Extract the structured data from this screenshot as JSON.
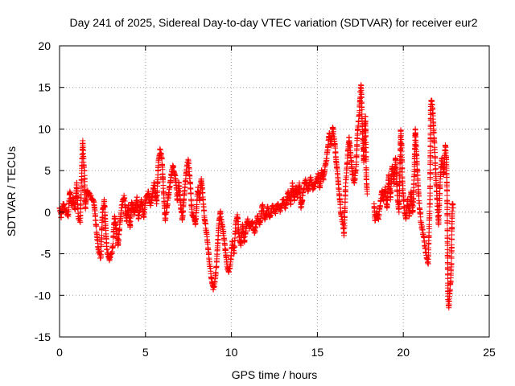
{
  "chart_data": {
    "type": "scatter",
    "title": "Day 241 of 2025, Sidereal Day-to-day VTEC variation (SDTVAR) for receiver eur2",
    "xlabel": "GPS time / hours",
    "ylabel": "SDTVAR / TECUs",
    "xlim": [
      0,
      25
    ],
    "ylim": [
      -15,
      20
    ],
    "x_ticks": [
      0,
      5,
      10,
      15,
      20,
      25
    ],
    "x_tick_labels": [
      "0",
      "5",
      "10",
      "15",
      "20",
      "25"
    ],
    "y_ticks": [
      -15,
      -10,
      -5,
      0,
      5,
      10,
      15,
      20
    ],
    "y_tick_labels": [
      "-15",
      "-10",
      "-5",
      "0",
      "5",
      "10",
      "15",
      "20"
    ],
    "grid": true,
    "marker": "+",
    "color": "#ff0000",
    "series": [
      {
        "name": "SDTVAR",
        "trace": [
          [
            0.0,
            0.5
          ],
          [
            0.1,
            -0.6
          ],
          [
            0.2,
            1.0
          ],
          [
            0.35,
            0.2
          ],
          [
            0.5,
            -0.5
          ],
          [
            0.6,
            2.5
          ],
          [
            0.7,
            0.8
          ],
          [
            0.8,
            1.8
          ],
          [
            0.9,
            0.3
          ],
          [
            1.0,
            3.5
          ],
          [
            1.05,
            1.0
          ],
          [
            1.1,
            -0.8
          ],
          [
            1.2,
            -1.2
          ],
          [
            1.35,
            8.6
          ],
          [
            1.4,
            6.0
          ],
          [
            1.45,
            5.0
          ],
          [
            1.5,
            0.5
          ],
          [
            1.6,
            2.5
          ],
          [
            1.8,
            2.0
          ],
          [
            2.0,
            1.2
          ],
          [
            2.1,
            -1.0
          ],
          [
            2.25,
            -4.5
          ],
          [
            2.4,
            -5.5
          ],
          [
            2.5,
            0.0
          ],
          [
            2.6,
            1.5
          ],
          [
            2.75,
            -4.5
          ],
          [
            2.9,
            -5.8
          ],
          [
            3.0,
            -5.0
          ],
          [
            3.1,
            -4.2
          ],
          [
            3.2,
            -0.5
          ],
          [
            3.3,
            -2.0
          ],
          [
            3.4,
            -4.0
          ],
          [
            3.5,
            -1.5
          ],
          [
            3.6,
            0.5
          ],
          [
            3.75,
            2.0
          ],
          [
            3.9,
            -1.0
          ],
          [
            4.0,
            0.8
          ],
          [
            4.1,
            -1.8
          ],
          [
            4.2,
            1.2
          ],
          [
            4.35,
            -0.3
          ],
          [
            4.5,
            1.8
          ],
          [
            4.6,
            -0.8
          ],
          [
            4.75,
            1.5
          ],
          [
            4.9,
            -0.5
          ],
          [
            5.0,
            1.5
          ],
          [
            5.15,
            2.5
          ],
          [
            5.3,
            0.8
          ],
          [
            5.5,
            3.5
          ],
          [
            5.65,
            1.0
          ],
          [
            5.75,
            6.0
          ],
          [
            5.85,
            7.5
          ],
          [
            5.95,
            6.5
          ],
          [
            6.05,
            2.5
          ],
          [
            6.15,
            -1.0
          ],
          [
            6.25,
            0.5
          ],
          [
            6.4,
            3.0
          ],
          [
            6.5,
            4.5
          ],
          [
            6.6,
            5.5
          ],
          [
            6.75,
            4.0
          ],
          [
            6.85,
            1.5
          ],
          [
            6.95,
            3.5
          ],
          [
            7.05,
            0.5
          ],
          [
            7.15,
            -0.8
          ],
          [
            7.25,
            2.0
          ],
          [
            7.4,
            5.5
          ],
          [
            7.5,
            6.2
          ],
          [
            7.6,
            3.5
          ],
          [
            7.7,
            0.0
          ],
          [
            7.8,
            -0.5
          ],
          [
            7.9,
            -1.5
          ],
          [
            8.05,
            3.0
          ],
          [
            8.15,
            1.5
          ],
          [
            8.25,
            4.0
          ],
          [
            8.35,
            1.5
          ],
          [
            8.45,
            -1.0
          ],
          [
            8.55,
            -2.5
          ],
          [
            8.65,
            -4.5
          ],
          [
            8.75,
            -6.5
          ],
          [
            8.85,
            -8.0
          ],
          [
            8.95,
            -9.3
          ],
          [
            9.05,
            -8.0
          ],
          [
            9.15,
            -6.0
          ],
          [
            9.25,
            -2.0
          ],
          [
            9.35,
            0.0
          ],
          [
            9.45,
            -1.5
          ],
          [
            9.55,
            -2.8
          ],
          [
            9.65,
            -4.5
          ],
          [
            9.75,
            -6.5
          ],
          [
            9.85,
            -7.2
          ],
          [
            9.95,
            -6.0
          ],
          [
            10.05,
            -3.5
          ],
          [
            10.15,
            -5.0
          ],
          [
            10.25,
            -1.5
          ],
          [
            10.35,
            -0.3
          ],
          [
            10.45,
            -3.0
          ],
          [
            10.55,
            -4.0
          ],
          [
            10.65,
            -1.5
          ],
          [
            10.75,
            -3.5
          ],
          [
            10.85,
            -2.0
          ],
          [
            10.95,
            -0.8
          ],
          [
            11.05,
            -2.0
          ],
          [
            11.2,
            -1.2
          ],
          [
            11.35,
            -2.5
          ],
          [
            11.5,
            -0.5
          ],
          [
            11.65,
            -1.5
          ],
          [
            11.8,
            0.8
          ],
          [
            11.95,
            -0.8
          ],
          [
            12.1,
            0.5
          ],
          [
            12.25,
            -0.5
          ],
          [
            12.4,
            0.8
          ],
          [
            12.55,
            0.0
          ],
          [
            12.7,
            1.0
          ],
          [
            12.85,
            0.2
          ],
          [
            13.0,
            1.5
          ],
          [
            13.15,
            0.5
          ],
          [
            13.3,
            2.5
          ],
          [
            13.45,
            1.0
          ],
          [
            13.55,
            3.5
          ],
          [
            13.65,
            1.5
          ],
          [
            13.75,
            3.0
          ],
          [
            13.85,
            1.8
          ],
          [
            13.95,
            3.5
          ],
          [
            14.05,
            0.5
          ],
          [
            14.15,
            2.0
          ],
          [
            14.3,
            3.8
          ],
          [
            14.45,
            2.5
          ],
          [
            14.6,
            4.2
          ],
          [
            14.75,
            2.8
          ],
          [
            14.9,
            3.5
          ],
          [
            15.05,
            4.5
          ],
          [
            15.15,
            3.0
          ],
          [
            15.25,
            5.0
          ],
          [
            15.35,
            4.0
          ],
          [
            15.5,
            6.0
          ],
          [
            15.6,
            7.5
          ],
          [
            15.7,
            9.5
          ],
          [
            15.8,
            8.0
          ],
          [
            15.9,
            10.2
          ],
          [
            16.0,
            8.5
          ],
          [
            16.1,
            6.0
          ],
          [
            16.2,
            4.0
          ],
          [
            16.3,
            1.5
          ],
          [
            16.4,
            -0.5
          ],
          [
            16.5,
            -1.5
          ],
          [
            16.55,
            -2.8
          ],
          [
            16.65,
            3.5
          ],
          [
            16.75,
            6.5
          ],
          [
            16.85,
            9.0
          ],
          [
            16.95,
            6.5
          ],
          [
            17.05,
            4.5
          ],
          [
            17.15,
            3.5
          ],
          [
            17.25,
            5.5
          ],
          [
            17.35,
            10.0
          ],
          [
            17.45,
            12.0
          ],
          [
            17.5,
            14.5
          ],
          [
            17.55,
            15.2
          ],
          [
            17.6,
            11.0
          ],
          [
            17.65,
            8.5
          ],
          [
            17.7,
            6.0
          ],
          [
            17.75,
            10.5
          ],
          [
            17.8,
            11.5
          ],
          [
            17.85,
            4.0
          ],
          [
            17.9,
            2.2
          ],
          [
            18.3,
            1.0
          ],
          [
            18.35,
            -1.0
          ],
          [
            18.45,
            0.0
          ],
          [
            18.55,
            -0.8
          ],
          [
            18.65,
            0.8
          ],
          [
            18.75,
            2.5
          ],
          [
            18.85,
            1.5
          ],
          [
            18.95,
            3.0
          ],
          [
            19.05,
            0.5
          ],
          [
            19.15,
            4.5
          ],
          [
            19.25,
            1.5
          ],
          [
            19.35,
            5.5
          ],
          [
            19.45,
            3.5
          ],
          [
            19.55,
            6.5
          ],
          [
            19.65,
            2.0
          ],
          [
            19.75,
            0.0
          ],
          [
            19.85,
            9.8
          ],
          [
            19.9,
            8.0
          ],
          [
            19.95,
            3.5
          ],
          [
            20.05,
            0.5
          ],
          [
            20.15,
            -0.8
          ],
          [
            20.25,
            1.5
          ],
          [
            20.35,
            -0.5
          ],
          [
            20.45,
            2.5
          ],
          [
            20.55,
            0.0
          ],
          [
            20.65,
            5.5
          ],
          [
            20.7,
            10.0
          ],
          [
            20.75,
            7.5
          ],
          [
            20.85,
            3.5
          ],
          [
            20.95,
            0.5
          ],
          [
            21.05,
            -1.5
          ],
          [
            21.15,
            -2.5
          ],
          [
            21.25,
            -4.0
          ],
          [
            21.35,
            -5.5
          ],
          [
            21.45,
            -6.2
          ],
          [
            21.5,
            -2.0
          ],
          [
            21.55,
            1.5
          ],
          [
            21.6,
            13.0
          ],
          [
            21.65,
            13.3
          ],
          [
            21.7,
            12.5
          ],
          [
            21.8,
            8.5
          ],
          [
            21.85,
            6.5
          ],
          [
            21.9,
            4.0
          ],
          [
            21.95,
            2.0
          ],
          [
            22.05,
            -1.5
          ],
          [
            22.15,
            4.0
          ],
          [
            22.25,
            6.5
          ],
          [
            22.35,
            4.5
          ],
          [
            22.45,
            8.0
          ],
          [
            22.5,
            6.5
          ],
          [
            22.55,
            2.0
          ],
          [
            22.6,
            -10.5
          ],
          [
            22.65,
            -11.5
          ],
          [
            22.7,
            -9.5
          ],
          [
            22.75,
            -8.5
          ],
          [
            22.8,
            -6.2
          ],
          [
            22.85,
            1.0
          ],
          [
            22.9,
            0.5
          ]
        ]
      }
    ]
  }
}
